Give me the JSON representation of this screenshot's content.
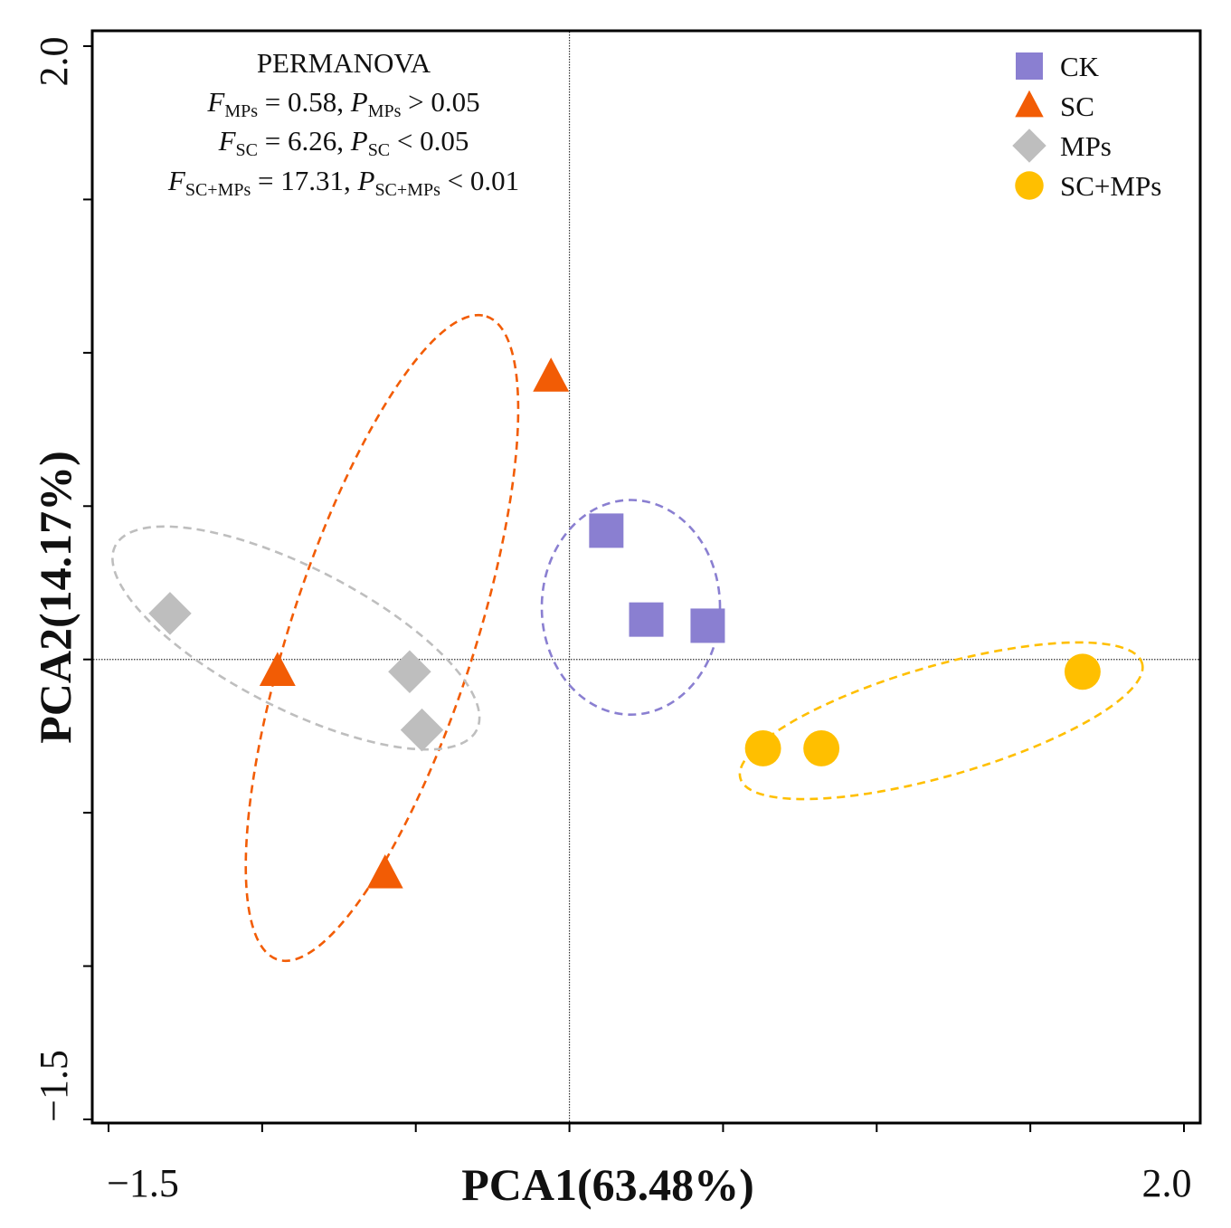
{
  "chart_data": {
    "type": "scatter",
    "xlabel": "PCA1(63.48%)",
    "ylabel": "PCA2(14.17%)",
    "xlim": [
      -1.5,
      2.0
    ],
    "ylim": [
      -1.5,
      2.0
    ],
    "x_tick_labels": [
      "−1.5",
      "2.0"
    ],
    "y_tick_labels": [
      "−1.5",
      "2.0"
    ],
    "stats_title": "PERMANOVA",
    "stats": [
      {
        "f_sub": "MPs",
        "f_val": "0.58",
        "p_sub": "MPs",
        "p_val": "> 0.05"
      },
      {
        "f_sub": "SC",
        "f_val": "6.26",
        "p_sub": "SC",
        "p_val": "< 0.05"
      },
      {
        "f_sub": "SC+MPs",
        "f_val": "17.31",
        "p_sub": "SC+MPs",
        "p_val": "< 0.01"
      }
    ],
    "series": [
      {
        "name": "CK",
        "marker": "square",
        "color": "#8A7FD1",
        "points": [
          [
            0.12,
            0.42
          ],
          [
            0.25,
            0.13
          ],
          [
            0.45,
            0.11
          ]
        ],
        "ellipse": {
          "cx": 0.2,
          "cy": 0.17,
          "rx": 0.29,
          "ry": 0.35,
          "angle": 0
        }
      },
      {
        "name": "SC",
        "marker": "triangle",
        "color": "#F25C05",
        "points": [
          [
            -0.06,
            0.92
          ],
          [
            -0.95,
            -0.04
          ],
          [
            -0.6,
            -0.7
          ]
        ],
        "ellipse": {
          "cx": -0.61,
          "cy": 0.07,
          "rx": 1.1,
          "ry": 0.3,
          "angle": -72
        }
      },
      {
        "name": "MPs",
        "marker": "diamond",
        "color": "#BEBEBE",
        "points": [
          [
            -1.3,
            0.15
          ],
          [
            -0.52,
            -0.04
          ],
          [
            -0.48,
            -0.23
          ]
        ],
        "ellipse": {
          "cx": -0.89,
          "cy": 0.07,
          "rx": 0.66,
          "ry": 0.23,
          "angle": 27
        }
      },
      {
        "name": "SC+MPs",
        "marker": "circle",
        "color": "#FFBF00",
        "points": [
          [
            0.63,
            -0.29
          ],
          [
            0.82,
            -0.29
          ],
          [
            1.67,
            -0.04
          ]
        ],
        "ellipse": {
          "cx": 1.21,
          "cy": -0.2,
          "rx": 0.68,
          "ry": 0.18,
          "angle": -16
        }
      }
    ]
  }
}
